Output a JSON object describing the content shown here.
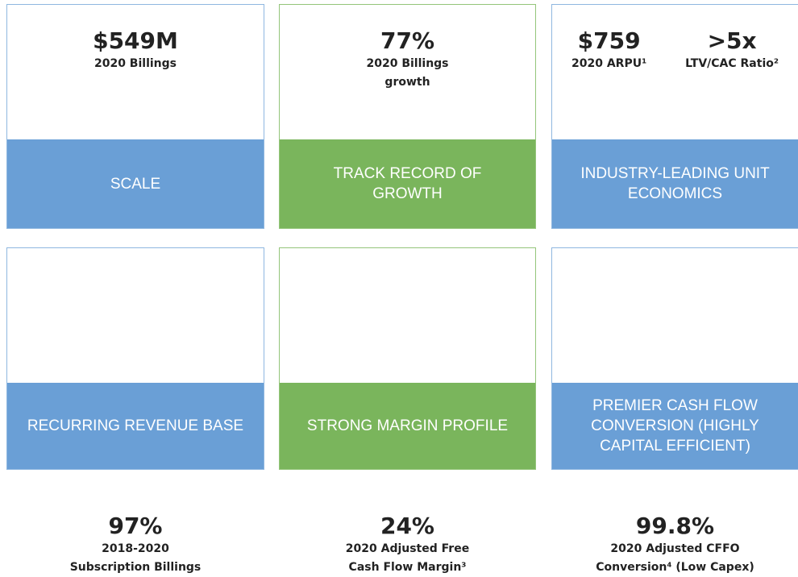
{
  "cards": [
    {
      "theme": "blue",
      "metrics": [
        {
          "value": "$549M",
          "label": [
            "2020 Billings"
          ]
        }
      ],
      "banner": [
        "SCALE"
      ]
    },
    {
      "theme": "green",
      "metrics": [
        {
          "value": "77%",
          "label": [
            "2020 Billings",
            "growth"
          ]
        }
      ],
      "banner": [
        "TRACK RECORD OF",
        "GROWTH"
      ]
    },
    {
      "theme": "blue",
      "metrics": [
        {
          "value": "$759",
          "label": [
            "2020 ARPU¹"
          ]
        },
        {
          "value": ">5x",
          "label": [
            "LTV/CAC Ratio²"
          ]
        }
      ],
      "banner": [
        "INDUSTRY-LEADING UNIT",
        "ECONOMICS"
      ]
    },
    {
      "theme": "blue",
      "metrics": [
        {
          "value": "97%",
          "label": [
            "2018-2020",
            "Subscription Billings"
          ]
        }
      ],
      "banner": [
        "RECURRING REVENUE BASE"
      ]
    },
    {
      "theme": "green",
      "metrics": [
        {
          "value": "24%",
          "label": [
            "2020 Adjusted Free",
            "Cash Flow Margin³"
          ]
        }
      ],
      "banner": [
        "STRONG MARGIN PROFILE"
      ]
    },
    {
      "theme": "blue",
      "metrics": [
        {
          "value": "99.8%",
          "label": [
            "2020 Adjusted CFFO",
            "Conversion⁴ (Low Capex)"
          ]
        }
      ],
      "banner": [
        "PREMIER CASH FLOW",
        "CONVERSION (HIGHLY",
        "CAPITAL EFFICIENT)"
      ]
    }
  ]
}
